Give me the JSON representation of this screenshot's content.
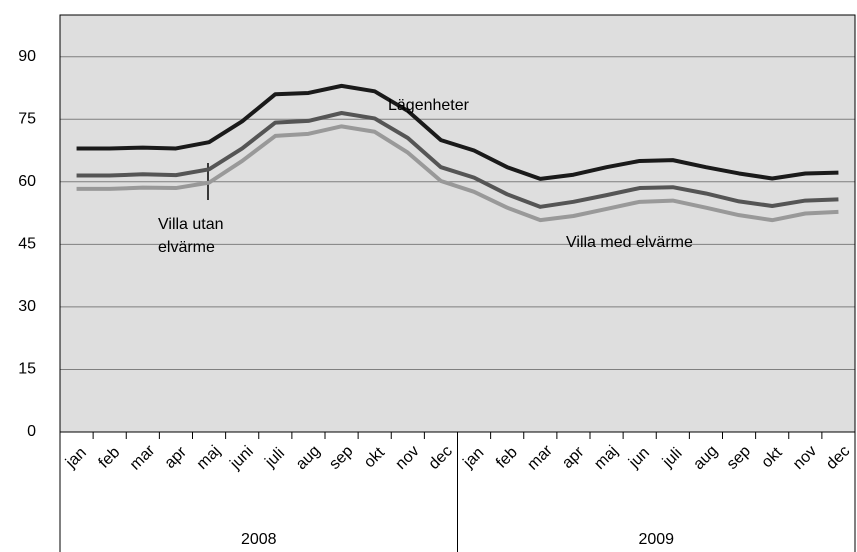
{
  "chart_data": {
    "type": "line",
    "categories": [
      "jan",
      "feb",
      "mar",
      "apr",
      "maj",
      "juni",
      "juli",
      "aug",
      "sep",
      "okt",
      "nov",
      "dec",
      "jan",
      "feb",
      "mar",
      "apr",
      "maj",
      "jun",
      "juli",
      "aug",
      "sep",
      "okt",
      "nov",
      "dec"
    ],
    "group_labels": [
      "2008",
      "2009"
    ],
    "series": [
      {
        "name": "Lägenheter",
        "color": "#1a1a1a",
        "values": [
          68,
          68,
          68.2,
          68,
          69.5,
          74.5,
          81,
          81.3,
          83,
          81.7,
          77,
          70,
          67.5,
          63.5,
          60.7,
          61.7,
          63.5,
          65,
          65.2,
          63.5,
          62,
          60.8,
          62,
          62.2
        ]
      },
      {
        "name": "Villa utan elvärme",
        "color": "#555555",
        "values": [
          61.5,
          61.5,
          61.8,
          61.6,
          63,
          68,
          74.2,
          74.6,
          76.5,
          75.2,
          70.5,
          63.5,
          61,
          57,
          54,
          55.2,
          56.8,
          58.5,
          58.7,
          57.2,
          55.3,
          54.2,
          55.5,
          55.8
        ]
      },
      {
        "name": "Villa med elvärme",
        "color": "#999999",
        "values": [
          58.3,
          58.3,
          58.6,
          58.5,
          59.8,
          65,
          71,
          71.5,
          73.3,
          72,
          67,
          60.2,
          57.6,
          53.8,
          50.8,
          51.8,
          53.5,
          55.2,
          55.5,
          53.8,
          52,
          50.8,
          52.4,
          52.8
        ]
      }
    ],
    "ylim": [
      0,
      100
    ],
    "yticks": [
      0,
      15,
      30,
      45,
      60,
      75,
      90
    ],
    "grid": true
  }
}
